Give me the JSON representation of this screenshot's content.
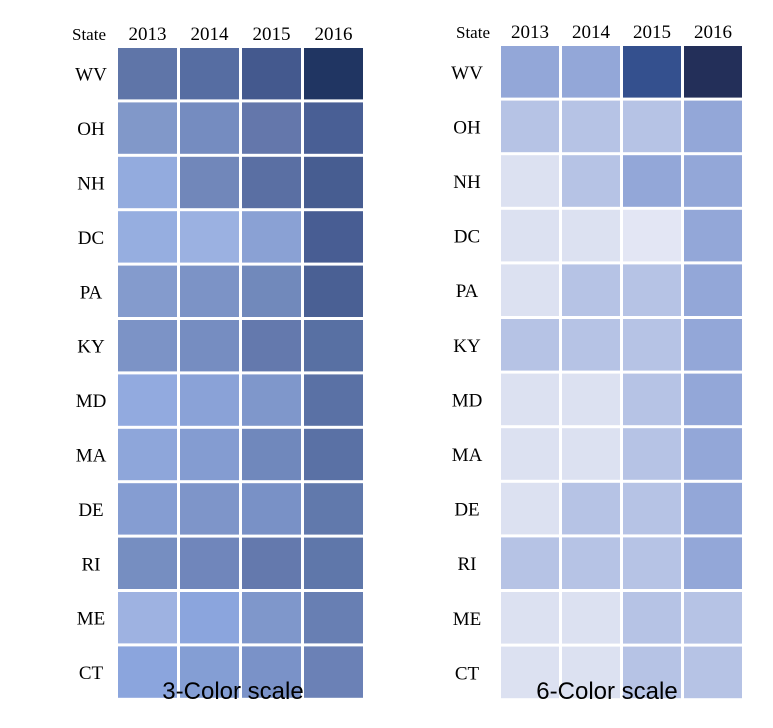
{
  "chart_data": [
    {
      "type": "heatmap",
      "caption": "3-Color scale",
      "header_label": "State",
      "columns": [
        "2013",
        "2014",
        "2015",
        "2016"
      ],
      "rows": [
        "WV",
        "OH",
        "NH",
        "DC",
        "PA",
        "KY",
        "MD",
        "MA",
        "DE",
        "RI",
        "ME",
        "CT"
      ],
      "cell_colors": [
        [
          "#5f75a8",
          "#566da2",
          "#44598e",
          "#203562"
        ],
        [
          "#8198c9",
          "#758cc0",
          "#6477ab",
          "#495f95"
        ],
        [
          "#93abde",
          "#7187ba",
          "#5a6fa3",
          "#475d91"
        ],
        [
          "#96aee0",
          "#9bb1e1",
          "#8aa1d4",
          "#485d93"
        ],
        [
          "#849bcd",
          "#7c93c6",
          "#7189bb",
          "#4a6094"
        ],
        [
          "#7c93c6",
          "#768dc1",
          "#6479ad",
          "#5870a3"
        ],
        [
          "#92aadf",
          "#8aa2d7",
          "#7f97cb",
          "#5a71a5"
        ],
        [
          "#8ea6da",
          "#849cd1",
          "#7088bc",
          "#5a71a5"
        ],
        [
          "#859dd2",
          "#7e95c9",
          "#7991c6",
          "#6179ac"
        ],
        [
          "#768ec1",
          "#7086bb",
          "#6479ad",
          "#5f77aa"
        ],
        [
          "#9eb2e1",
          "#8ba5dd",
          "#7f97cb",
          "#687fb3"
        ],
        [
          "#8ba5dd",
          "#849ed4",
          "#7a92c8",
          "#6b81b6"
        ]
      ]
    },
    {
      "type": "heatmap",
      "caption": "6-Color scale",
      "header_label": "State",
      "columns": [
        "2013",
        "2014",
        "2015",
        "2016"
      ],
      "rows": [
        "WV",
        "OH",
        "NH",
        "DC",
        "PA",
        "KY",
        "MD",
        "MA",
        "DE",
        "RI",
        "ME",
        "CT"
      ],
      "cell_colors": [
        [
          "#93a7d8",
          "#93a7d8",
          "#34508e",
          "#232f59"
        ],
        [
          "#b6c3e5",
          "#b6c3e5",
          "#b6c3e5",
          "#93a7d8"
        ],
        [
          "#dce1f1",
          "#b6c3e5",
          "#93a7d8",
          "#93a7d8"
        ],
        [
          "#dce1f1",
          "#dce1f1",
          "#e3e6f4",
          "#93a7d8"
        ],
        [
          "#dce1f1",
          "#b6c3e5",
          "#b6c3e5",
          "#93a7d8"
        ],
        [
          "#b6c3e5",
          "#b6c3e5",
          "#b6c3e5",
          "#93a7d8"
        ],
        [
          "#dce1f1",
          "#dce1f1",
          "#b6c3e5",
          "#93a7d8"
        ],
        [
          "#dce1f1",
          "#dce1f1",
          "#b6c3e5",
          "#93a7d8"
        ],
        [
          "#dce1f1",
          "#b6c3e5",
          "#b6c3e5",
          "#93a7d8"
        ],
        [
          "#b6c3e5",
          "#b6c3e5",
          "#b6c3e5",
          "#93a7d8"
        ],
        [
          "#dce1f1",
          "#dce1f1",
          "#b6c3e5",
          "#b6c3e5"
        ],
        [
          "#dce1f1",
          "#dce1f1",
          "#b6c3e5",
          "#b6c3e5"
        ]
      ]
    }
  ]
}
